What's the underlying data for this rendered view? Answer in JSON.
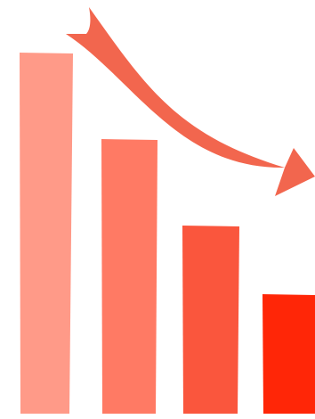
{
  "illustration": {
    "kind": "decreasing-bars-with-downward-arrow",
    "bar_levels": [
      1.0,
      0.76,
      0.52,
      0.33
    ],
    "bar_colors": [
      "#FF9A88",
      "#FF7A64",
      "#FA563D",
      "#FF2607"
    ],
    "arrow_color": "#F2664E",
    "background": "#FFFFFF"
  }
}
